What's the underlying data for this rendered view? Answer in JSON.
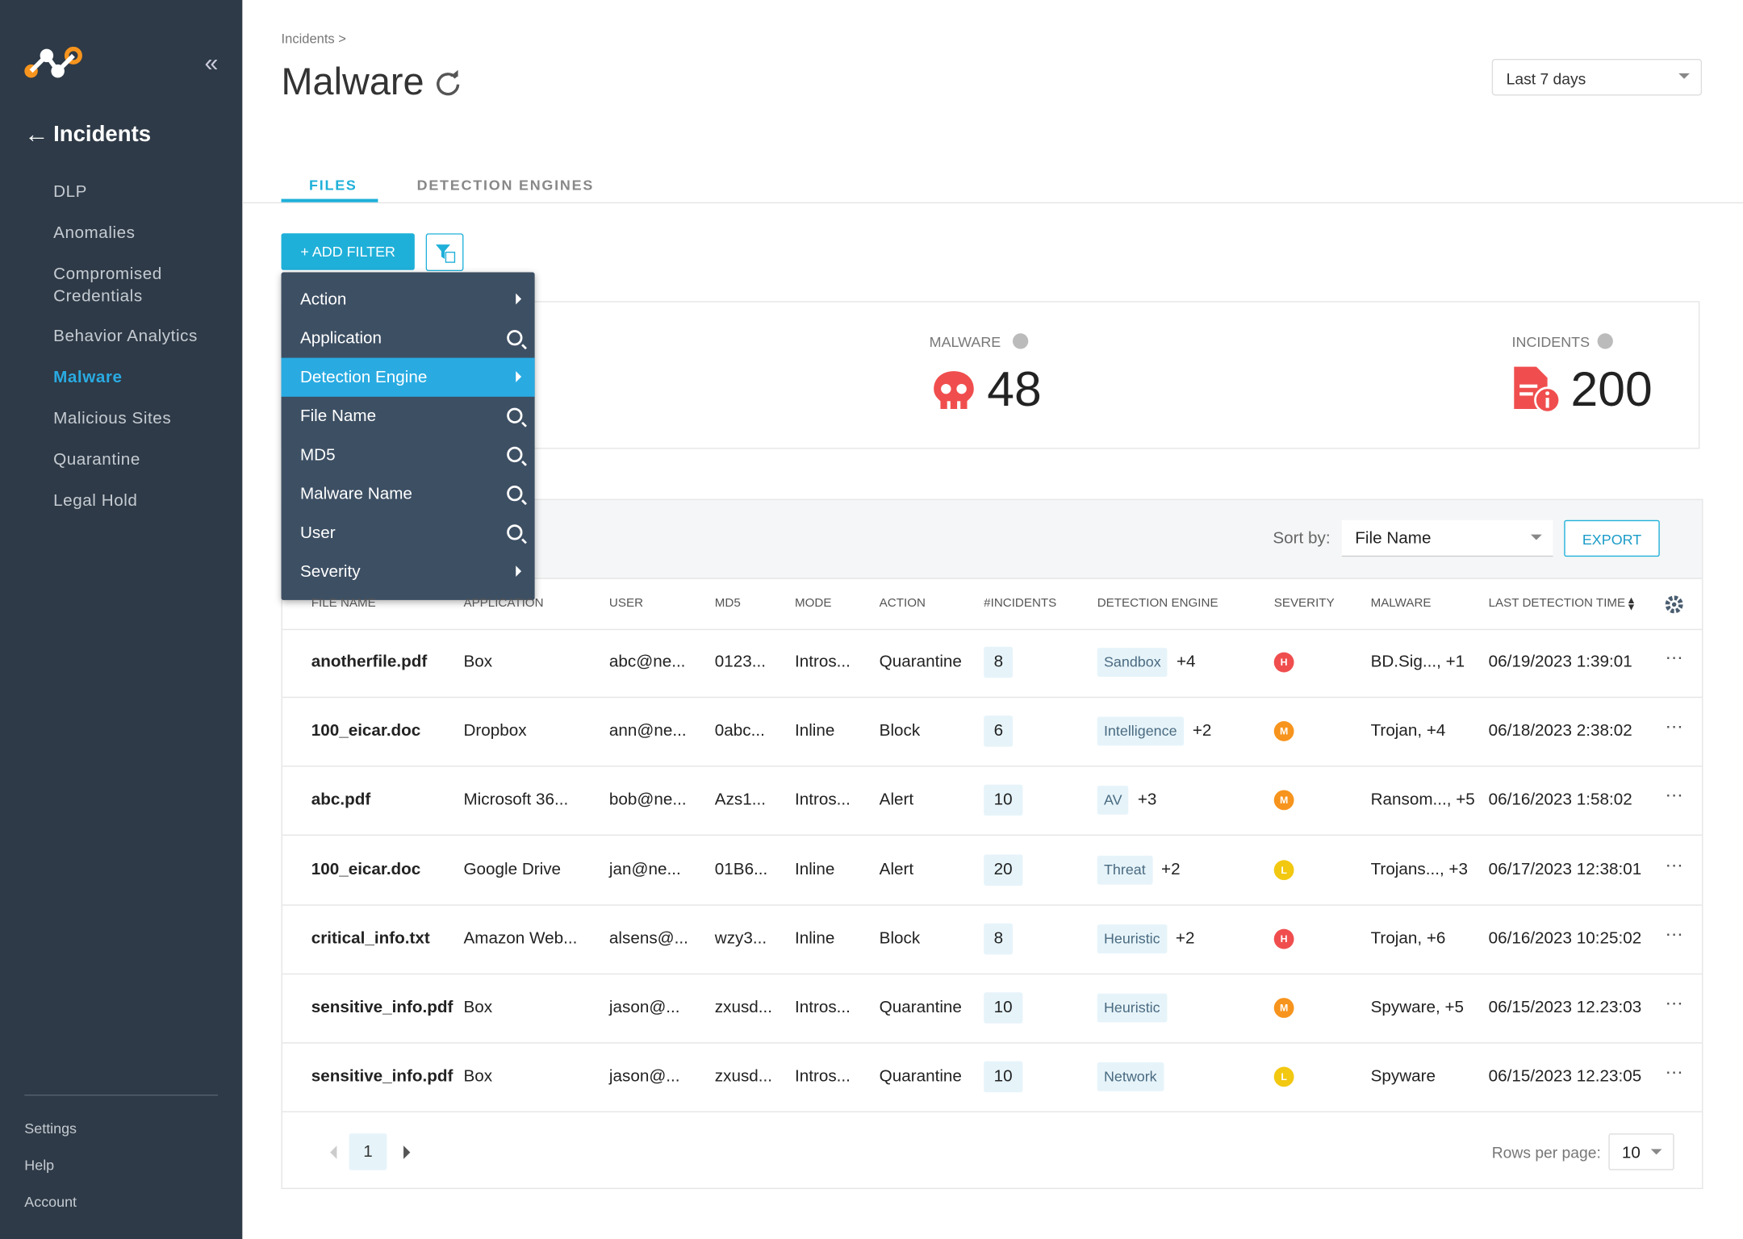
{
  "sidebar": {
    "section": "Incidents",
    "nav": [
      {
        "label": "DLP"
      },
      {
        "label": "Anomalies"
      },
      {
        "label": "Compromised Credentials"
      },
      {
        "label": "Behavior Analytics"
      },
      {
        "label": "Malware",
        "selected": true
      },
      {
        "label": "Malicious Sites"
      },
      {
        "label": "Quarantine"
      },
      {
        "label": "Legal Hold"
      }
    ],
    "footer": [
      "Settings",
      "Help",
      "Account"
    ]
  },
  "header": {
    "breadcrumb": "Incidents >",
    "title": "Malware",
    "date_range": "Last 7 days"
  },
  "tabs": [
    {
      "label": "FILES",
      "selected": true
    },
    {
      "label": "DETECTION ENGINES"
    }
  ],
  "filter": {
    "button": "+ ADD FILTER",
    "menu": [
      {
        "label": "Action",
        "icon": "arrow"
      },
      {
        "label": "Application",
        "icon": "search"
      },
      {
        "label": "Detection Engine",
        "icon": "arrow",
        "highlighted": true
      },
      {
        "label": "File Name",
        "icon": "search"
      },
      {
        "label": "MD5",
        "icon": "search"
      },
      {
        "label": "Malware Name",
        "icon": "search"
      },
      {
        "label": "User",
        "icon": "search"
      },
      {
        "label": "Severity",
        "icon": "arrow"
      }
    ]
  },
  "stats": [
    {
      "label": "MALWARE",
      "value": 48
    },
    {
      "label": "INCIDENTS",
      "value": 200
    }
  ],
  "table": {
    "sort_label": "Sort by:",
    "sort_value": "File Name",
    "export": "EXPORT",
    "columns": [
      "FILE NAME",
      "APPLICATION",
      "USER",
      "MD5",
      "MODE",
      "ACTION",
      "#INCIDENTS",
      "DETECTION ENGINE",
      "SEVERITY",
      "MALWARE",
      "LAST DETECTION TIME"
    ],
    "rows": [
      {
        "file": "anotherfile.pdf",
        "app": "Box",
        "user": "abc@ne...",
        "md5": "0123...",
        "mode": "Intros...",
        "action": "Quarantine",
        "incidents": 8,
        "engine": "Sandbox",
        "engine_more": "+4",
        "severity": "H",
        "malware": "BD.Sig..., +1",
        "time": "06/19/2023 1:39:01"
      },
      {
        "file": "100_eicar.doc",
        "app": "Dropbox",
        "user": "ann@ne...",
        "md5": "0abc...",
        "mode": "Inline",
        "action": "Block",
        "incidents": 6,
        "engine": "Intelligence",
        "engine_more": "+2",
        "severity": "M",
        "malware": "Trojan, +4",
        "time": "06/18/2023 2:38:02"
      },
      {
        "file": "abc.pdf",
        "app": "Microsoft 36...",
        "user": "bob@ne...",
        "md5": "Azs1...",
        "mode": "Intros...",
        "action": "Alert",
        "incidents": 10,
        "engine": "AV",
        "engine_more": "+3",
        "severity": "M",
        "malware": "Ransom..., +5",
        "time": "06/16/2023 1:58:02"
      },
      {
        "file": "100_eicar.doc",
        "app": "Google Drive",
        "user": "jan@ne...",
        "md5": "01B6...",
        "mode": "Inline",
        "action": "Alert",
        "incidents": 20,
        "engine": "Threat",
        "engine_more": "+2",
        "severity": "L",
        "malware": "Trojans..., +3",
        "time": "06/17/2023 12:38:01"
      },
      {
        "file": "critical_info.txt",
        "app": "Amazon Web...",
        "user": "alsens@...",
        "md5": "wzy3...",
        "mode": "Inline",
        "action": "Block",
        "incidents": 8,
        "engine": "Heuristic",
        "engine_more": "+2",
        "severity": "H",
        "malware": "Trojan, +6",
        "time": "06/16/2023 10:25:02"
      },
      {
        "file": "sensitive_info.pdf",
        "app": "Box",
        "user": "jason@...",
        "md5": "zxusd...",
        "mode": "Intros...",
        "action": "Quarantine",
        "incidents": 10,
        "engine": "Heuristic",
        "severity": "M",
        "malware": "Spyware, +5",
        "time": "06/15/2023 12.23:03"
      },
      {
        "file": "sensitive_info.pdf",
        "app": "Box",
        "user": "jason@...",
        "md5": "zxusd...",
        "mode": "Intros...",
        "action": "Quarantine",
        "incidents": 10,
        "engine": "Network",
        "severity": "L",
        "malware": "Spyware",
        "time": "06/15/2023 12.23:05"
      }
    ]
  },
  "pagination": {
    "page": "1",
    "rows_per_page_label": "Rows per page:",
    "rows_per_page": "10"
  }
}
